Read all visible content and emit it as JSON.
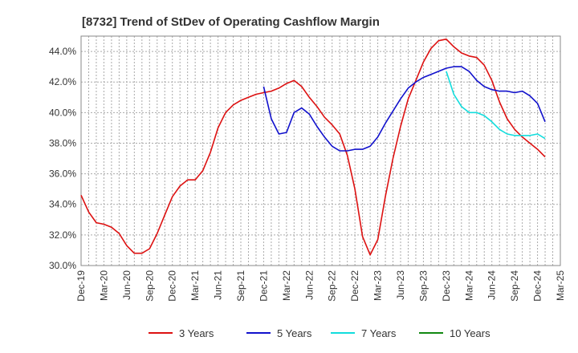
{
  "chart_data": {
    "type": "line",
    "title": "[8732]  Trend of StDev of Operating Cashflow Margin",
    "xlabel": "",
    "ylabel": "",
    "x_tick_labels": [
      "Dec-19",
      "Mar-20",
      "Jun-20",
      "Sep-20",
      "Dec-20",
      "Mar-21",
      "Jun-21",
      "Sep-21",
      "Dec-21",
      "Mar-22",
      "Jun-22",
      "Sep-22",
      "Dec-22",
      "Mar-23",
      "Jun-23",
      "Sep-23",
      "Dec-23",
      "Mar-24",
      "Jun-24",
      "Sep-24",
      "Dec-24",
      "Mar-25"
    ],
    "y_tick_labels": [
      "30.0%",
      "32.0%",
      "34.0%",
      "36.0%",
      "38.0%",
      "40.0%",
      "42.0%",
      "44.0%"
    ],
    "ylim": [
      30.0,
      45.0
    ],
    "y_ticks": [
      30,
      32,
      34,
      36,
      38,
      40,
      42,
      44
    ],
    "x_range_months": [
      0,
      63
    ],
    "grid": true,
    "legend_position": "bottom",
    "series": [
      {
        "name": "3 Years",
        "color": "#dd1111",
        "values": [
          [
            0,
            34.6
          ],
          [
            1,
            33.5
          ],
          [
            2,
            32.8
          ],
          [
            3,
            32.7
          ],
          [
            4,
            32.5
          ],
          [
            5,
            32.1
          ],
          [
            6,
            31.3
          ],
          [
            7,
            30.8
          ],
          [
            8,
            30.8
          ],
          [
            9,
            31.1
          ],
          [
            10,
            32.1
          ],
          [
            11,
            33.3
          ],
          [
            12,
            34.5
          ],
          [
            13,
            35.2
          ],
          [
            14,
            35.6
          ],
          [
            15,
            35.6
          ],
          [
            16,
            36.2
          ],
          [
            17,
            37.4
          ],
          [
            18,
            39.0
          ],
          [
            19,
            40.0
          ],
          [
            20,
            40.5
          ],
          [
            21,
            40.8
          ],
          [
            22,
            41.0
          ],
          [
            23,
            41.2
          ],
          [
            24,
            41.3
          ],
          [
            25,
            41.4
          ],
          [
            26,
            41.6
          ],
          [
            27,
            41.9
          ],
          [
            28,
            42.1
          ],
          [
            29,
            41.7
          ],
          [
            30,
            41.0
          ],
          [
            31,
            40.4
          ],
          [
            32,
            39.7
          ],
          [
            33,
            39.2
          ],
          [
            34,
            38.6
          ],
          [
            35,
            37.2
          ],
          [
            36,
            35.0
          ],
          [
            37,
            31.9
          ],
          [
            38,
            30.7
          ],
          [
            39,
            31.7
          ],
          [
            40,
            34.5
          ],
          [
            41,
            37.0
          ],
          [
            42,
            39.1
          ],
          [
            43,
            40.9
          ],
          [
            44,
            42.1
          ],
          [
            45,
            43.3
          ],
          [
            46,
            44.2
          ],
          [
            47,
            44.7
          ],
          [
            48,
            44.8
          ],
          [
            49,
            44.3
          ],
          [
            50,
            43.9
          ],
          [
            51,
            43.7
          ],
          [
            52,
            43.6
          ],
          [
            53,
            43.1
          ],
          [
            54,
            42.1
          ],
          [
            55,
            40.7
          ],
          [
            56,
            39.6
          ],
          [
            57,
            38.9
          ],
          [
            58,
            38.4
          ],
          [
            59,
            38.0
          ],
          [
            60,
            37.6
          ],
          [
            61,
            37.1
          ]
        ]
      },
      {
        "name": "5 Years",
        "color": "#1111cc",
        "values": [
          [
            24,
            41.7
          ],
          [
            25,
            39.6
          ],
          [
            26,
            38.6
          ],
          [
            27,
            38.7
          ],
          [
            28,
            40.0
          ],
          [
            29,
            40.3
          ],
          [
            30,
            39.9
          ],
          [
            31,
            39.1
          ],
          [
            32,
            38.4
          ],
          [
            33,
            37.8
          ],
          [
            34,
            37.5
          ],
          [
            35,
            37.5
          ],
          [
            36,
            37.6
          ],
          [
            37,
            37.6
          ],
          [
            38,
            37.8
          ],
          [
            39,
            38.4
          ],
          [
            40,
            39.3
          ],
          [
            41,
            40.1
          ],
          [
            42,
            40.9
          ],
          [
            43,
            41.6
          ],
          [
            44,
            42.0
          ],
          [
            45,
            42.3
          ],
          [
            46,
            42.5
          ],
          [
            47,
            42.7
          ],
          [
            48,
            42.9
          ],
          [
            49,
            43.0
          ],
          [
            50,
            43.0
          ],
          [
            51,
            42.7
          ],
          [
            52,
            42.1
          ],
          [
            53,
            41.7
          ],
          [
            54,
            41.5
          ],
          [
            55,
            41.4
          ],
          [
            56,
            41.4
          ],
          [
            57,
            41.3
          ],
          [
            58,
            41.4
          ],
          [
            59,
            41.1
          ],
          [
            60,
            40.6
          ],
          [
            61,
            39.4
          ]
        ]
      },
      {
        "name": "7 Years",
        "color": "#11dddd",
        "values": [
          [
            48,
            42.7
          ],
          [
            49,
            41.2
          ],
          [
            50,
            40.4
          ],
          [
            51,
            40.0
          ],
          [
            52,
            40.0
          ],
          [
            53,
            39.8
          ],
          [
            54,
            39.4
          ],
          [
            55,
            38.9
          ],
          [
            56,
            38.6
          ],
          [
            57,
            38.5
          ],
          [
            58,
            38.5
          ],
          [
            59,
            38.5
          ],
          [
            60,
            38.6
          ],
          [
            61,
            38.3
          ]
        ]
      },
      {
        "name": "10 Years",
        "color": "#118811",
        "values": []
      }
    ]
  }
}
